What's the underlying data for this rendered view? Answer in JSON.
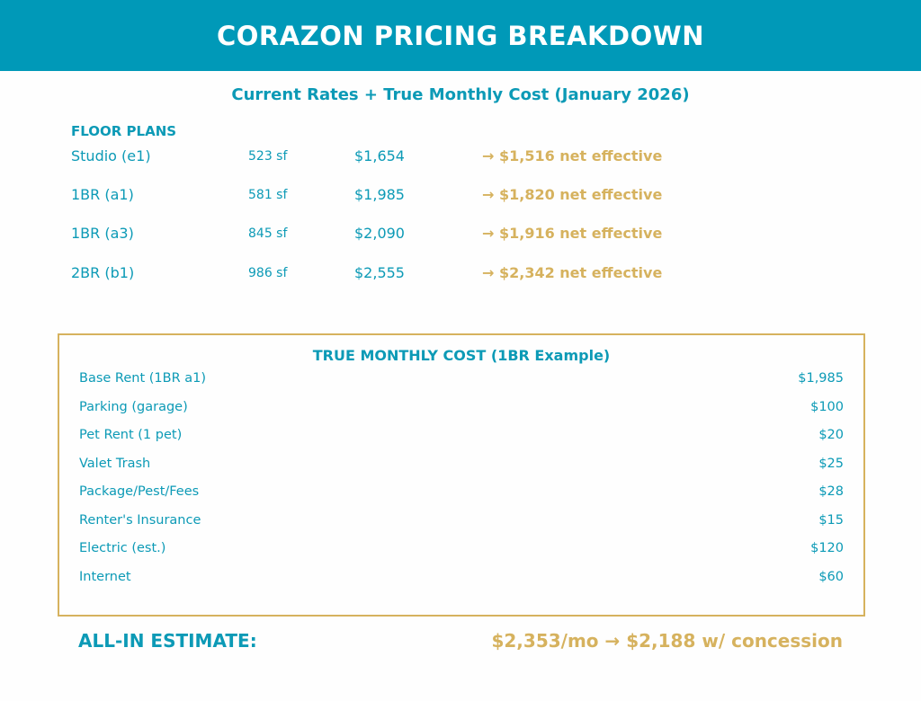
{
  "header": {
    "title": "CORAZON PRICING BREAKDOWN"
  },
  "subtitle": "Current Rates + True Monthly Cost (January 2026)",
  "floor_plans": {
    "label": "FLOOR PLANS",
    "rows": [
      {
        "name": "Studio (e1)",
        "sf": "523 sf",
        "price": "$1,654",
        "net": "→ $1,516 net effective"
      },
      {
        "name": "1BR (a1)",
        "sf": "581 sf",
        "price": "$1,985",
        "net": "→ $1,820 net effective"
      },
      {
        "name": "1BR (a3)",
        "sf": "845 sf",
        "price": "$2,090",
        "net": "→ $1,916 net effective"
      },
      {
        "name": "2BR (b1)",
        "sf": "986 sf",
        "price": "$2,555",
        "net": "→ $2,342 net effective"
      }
    ]
  },
  "true_cost": {
    "title": "TRUE MONTHLY COST (1BR Example)",
    "items": [
      {
        "label": "Base Rent (1BR a1)",
        "value": "$1,985"
      },
      {
        "label": "Parking (garage)",
        "value": "$100"
      },
      {
        "label": "Pet Rent (1 pet)",
        "value": "$20"
      },
      {
        "label": "Valet Trash",
        "value": "$25"
      },
      {
        "label": "Package/Pest/Fees",
        "value": "$28"
      },
      {
        "label": "Renter's Insurance",
        "value": "$15"
      },
      {
        "label": "Electric (est.)",
        "value": "$120"
      },
      {
        "label": "Internet",
        "value": "$60"
      }
    ]
  },
  "all_in": {
    "label": "ALL-IN ESTIMATE:",
    "value": "$2,353/mo → $2,188 w/ concession"
  },
  "colors": {
    "teal": "#0099b8",
    "text_teal": "#0c9ab6",
    "gold": "#d6b25e"
  }
}
